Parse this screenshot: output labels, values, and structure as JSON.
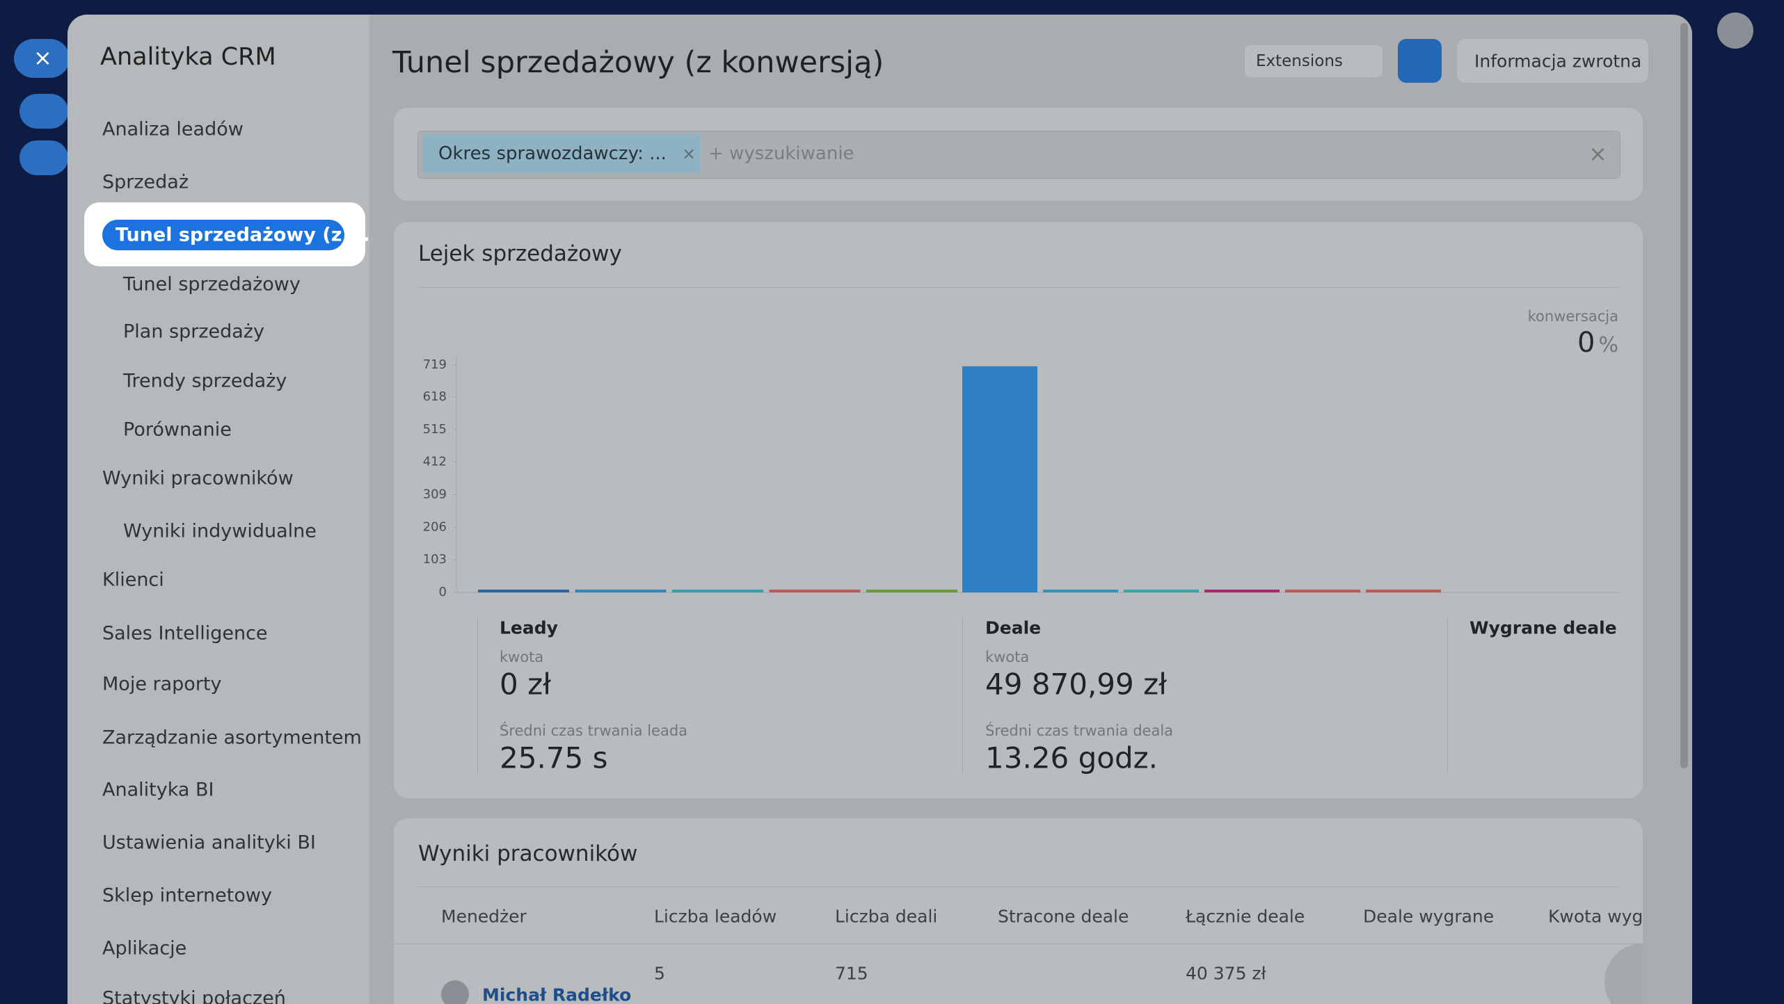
{
  "sidebar": {
    "title": "Analityka CRM",
    "items": [
      "Analiza leadów",
      "Sprzedaż",
      "Tunel sprzedażowy (z ...",
      "Tunel sprzedażowy",
      "Plan sprzedaży",
      "Trendy sprzedaży",
      "Porównanie",
      "Wyniki pracowników",
      "Wyniki indywidualne",
      "Klienci",
      "Sales Intelligence",
      "Moje raporty",
      "Zarządzanie asortymentem",
      "Analityka BI",
      "Ustawienia analityki BI",
      "Sklep internetowy",
      "Aplikacje",
      "Statystyki połączeń"
    ]
  },
  "header": {
    "title": "Tunel sprzedażowy (z konwersją)",
    "extensions": "Extensions",
    "feedback": "Informacja zwrotna"
  },
  "filter": {
    "tag": "Okres sprawozdawczy: ...",
    "placeholder": "+ wyszukiwanie"
  },
  "chart_data": {
    "type": "bar",
    "title": "Lejek sprzedażowy",
    "categories": [
      null,
      null,
      null,
      null,
      null,
      null,
      null,
      null,
      null,
      null,
      null
    ],
    "values": [
      5,
      0,
      0,
      0,
      0,
      715,
      0,
      0,
      0,
      0,
      0
    ],
    "colors": [
      "#2c64a0",
      "#3685b2",
      "#3a9aa8",
      "#b85a5a",
      "#6b9a3c",
      "#2f80c2",
      "#3a8fb5",
      "#3aa3a8",
      "#a8286e",
      "#b85a5a",
      "#b85a5a"
    ],
    "ylim": [
      0,
      719
    ],
    "yticks": [
      0,
      103,
      206,
      309,
      412,
      515,
      618,
      719
    ],
    "conversion_label": "konwersacja",
    "conversion_value": 0,
    "conversion_unit": "%"
  },
  "stats": [
    {
      "title": "Leady",
      "amount_label": "kwota",
      "amount": "0 zł",
      "time_label": "Średni czas trwania leada",
      "time": "25.75 s"
    },
    {
      "title": "Deale",
      "amount_label": "kwota",
      "amount": "49 870,99 zł",
      "time_label": "Średni czas trwania deala",
      "time": "13.26 godz."
    },
    {
      "title": "Wygrane deale"
    }
  ],
  "employees": {
    "title": "Wyniki pracowników",
    "columns": [
      "Menedżer",
      "Liczba leadów",
      "Liczba deali",
      "Stracone deale",
      "Łącznie deale",
      "Deale wygrane",
      "Kwota wygra"
    ],
    "rows": [
      {
        "manager": "Michał Radełko",
        "leads": "5",
        "deals": "715",
        "total": "40 375 zł"
      }
    ]
  }
}
